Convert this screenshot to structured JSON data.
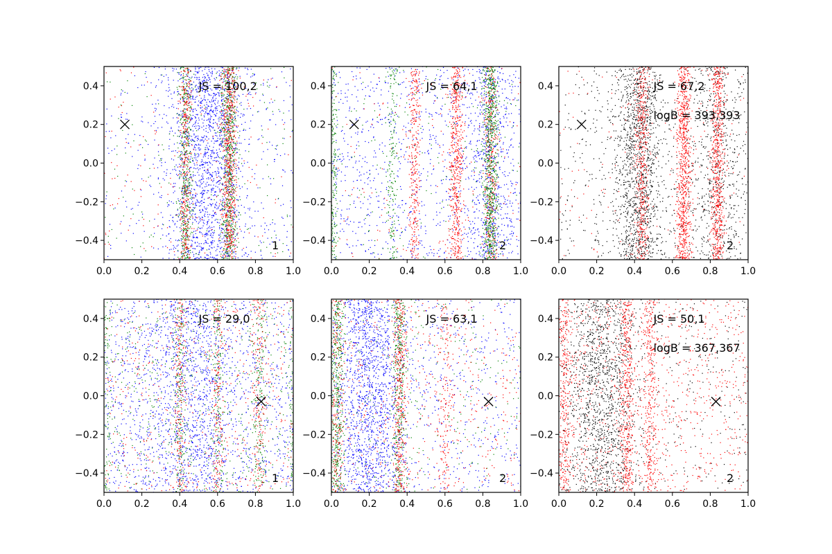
{
  "figure": {
    "layout": "2 rows x 3 columns",
    "background": "#ffffff"
  },
  "colors": {
    "blue": "#0000ff",
    "green": "#008000",
    "red": "#ff0000",
    "black": "#000000"
  },
  "chart_data": [
    {
      "type": "scatter",
      "xlim": [
        0.0,
        1.0
      ],
      "ylim": [
        -0.5,
        0.5
      ],
      "xticks": [
        "0.0",
        "0.2",
        "0.4",
        "0.6",
        "0.8",
        "1.0"
      ],
      "yticks": [
        "-0.4",
        "-0.2",
        "0.0",
        "0.2",
        "0.4"
      ],
      "annotations": [
        "JS = 100,2"
      ],
      "panel_label": "1",
      "marker_x": {
        "x": 0.11,
        "y": 0.2
      },
      "series": [
        {
          "name": "blue",
          "color": "#0000ff",
          "distribution": "mixed uniform/Gaussian bands",
          "uniform_count": 450,
          "bands": [
            {
              "center": 0.55,
              "sigma": 0.1,
              "count": 1500
            }
          ]
        },
        {
          "name": "green",
          "color": "#008000",
          "uniform_count": 180,
          "bands": [
            {
              "center": 0.43,
              "sigma": 0.018,
              "count": 450
            },
            {
              "center": 0.66,
              "sigma": 0.022,
              "count": 650
            }
          ]
        },
        {
          "name": "red",
          "color": "#ff0000",
          "uniform_count": 170,
          "bands": [
            {
              "center": 0.43,
              "sigma": 0.015,
              "count": 320
            },
            {
              "center": 0.66,
              "sigma": 0.02,
              "count": 600
            }
          ]
        }
      ]
    },
    {
      "type": "scatter",
      "xlim": [
        0.0,
        1.0
      ],
      "ylim": [
        -0.5,
        0.5
      ],
      "xticks": [
        "0.0",
        "0.2",
        "0.4",
        "0.6",
        "0.8",
        "1.0"
      ],
      "yticks": [
        "-0.4",
        "-0.2",
        "0.0",
        "0.2",
        "0.4"
      ],
      "annotations": [
        "JS = 64,1"
      ],
      "panel_label": "2",
      "marker_x": {
        "x": 0.12,
        "y": 0.2
      },
      "series": [
        {
          "name": "blue",
          "color": "#0000ff",
          "uniform_count": 1000,
          "bands": [
            {
              "center": 0.84,
              "sigma": 0.06,
              "count": 500
            }
          ]
        },
        {
          "name": "red",
          "color": "#ff0000",
          "uniform_count": 150,
          "bands": [
            {
              "center": 0.44,
              "sigma": 0.015,
              "count": 300
            },
            {
              "center": 0.66,
              "sigma": 0.018,
              "count": 550
            },
            {
              "center": 0.84,
              "sigma": 0.018,
              "count": 350
            }
          ]
        },
        {
          "name": "green",
          "color": "#008000",
          "uniform_count": 150,
          "bands": [
            {
              "center": 0.01,
              "sigma": 0.012,
              "count": 220
            },
            {
              "center": 0.32,
              "sigma": 0.015,
              "count": 180
            },
            {
              "center": 0.84,
              "sigma": 0.02,
              "count": 750
            }
          ]
        }
      ]
    },
    {
      "type": "scatter",
      "xlim": [
        0.0,
        1.0
      ],
      "ylim": [
        -0.5,
        0.5
      ],
      "xticks": [
        "0.0",
        "0.2",
        "0.4",
        "0.6",
        "0.8",
        "1.0"
      ],
      "yticks": [
        "-0.4",
        "-0.2",
        "0.0",
        "0.2",
        "0.4"
      ],
      "annotations": [
        "JS = 67,2",
        "logB = 393,393"
      ],
      "panel_label": "2",
      "marker_x": {
        "x": 0.12,
        "y": 0.2
      },
      "series": [
        {
          "name": "black",
          "color": "#000000",
          "uniform_count": 600,
          "bands": [
            {
              "center": 0.42,
              "sigma": 0.06,
              "count": 1200
            },
            {
              "center": 0.85,
              "sigma": 0.08,
              "count": 500
            }
          ]
        },
        {
          "name": "red",
          "color": "#ff0000",
          "uniform_count": 150,
          "bands": [
            {
              "center": 0.44,
              "sigma": 0.018,
              "count": 450
            },
            {
              "center": 0.66,
              "sigma": 0.02,
              "count": 800
            },
            {
              "center": 0.84,
              "sigma": 0.018,
              "count": 650
            }
          ]
        }
      ]
    },
    {
      "type": "scatter",
      "xlim": [
        0.0,
        1.0
      ],
      "ylim": [
        -0.5,
        0.5
      ],
      "xticks": [
        "0.0",
        "0.2",
        "0.4",
        "0.6",
        "0.8",
        "1.0"
      ],
      "yticks": [
        "-0.4",
        "-0.2",
        "0.0",
        "0.2",
        "0.4"
      ],
      "annotations": [
        "JS = 29,0"
      ],
      "panel_label": "1",
      "marker_x": {
        "x": 0.83,
        "y": -0.03
      },
      "series": [
        {
          "name": "blue",
          "color": "#0000ff",
          "uniform_count": 1200,
          "bands": [
            {
              "center": 0.45,
              "sigma": 0.12,
              "count": 900
            }
          ]
        },
        {
          "name": "green",
          "color": "#008000",
          "uniform_count": 500,
          "bands": [
            {
              "center": 0.0,
              "sigma": 0.015,
              "count": 120
            },
            {
              "center": 0.4,
              "sigma": 0.015,
              "count": 180
            },
            {
              "center": 0.6,
              "sigma": 0.015,
              "count": 150
            },
            {
              "center": 0.82,
              "sigma": 0.02,
              "count": 150
            },
            {
              "center": 1.0,
              "sigma": 0.01,
              "count": 120
            }
          ]
        },
        {
          "name": "red",
          "color": "#ff0000",
          "uniform_count": 450,
          "bands": [
            {
              "center": 0.4,
              "sigma": 0.015,
              "count": 180
            },
            {
              "center": 0.6,
              "sigma": 0.015,
              "count": 160
            },
            {
              "center": 0.82,
              "sigma": 0.02,
              "count": 150
            }
          ]
        }
      ]
    },
    {
      "type": "scatter",
      "xlim": [
        0.0,
        1.0
      ],
      "ylim": [
        -0.5,
        0.5
      ],
      "xticks": [
        "0.0",
        "0.2",
        "0.4",
        "0.6",
        "0.8",
        "1.0"
      ],
      "yticks": [
        "-0.4",
        "-0.2",
        "0.0",
        "0.2",
        "0.4"
      ],
      "annotations": [
        "JS = 63,1"
      ],
      "panel_label": "2",
      "marker_x": {
        "x": 0.83,
        "y": -0.03
      },
      "series": [
        {
          "name": "blue",
          "color": "#0000ff",
          "uniform_count": 700,
          "bands": [
            {
              "center": 0.2,
              "sigma": 0.09,
              "count": 1300
            }
          ]
        },
        {
          "name": "green",
          "color": "#008000",
          "uniform_count": 250,
          "bands": [
            {
              "center": 0.03,
              "sigma": 0.02,
              "count": 450
            },
            {
              "center": 0.36,
              "sigma": 0.018,
              "count": 350
            }
          ]
        },
        {
          "name": "red",
          "color": "#ff0000",
          "uniform_count": 450,
          "bands": [
            {
              "center": 0.03,
              "sigma": 0.02,
              "count": 200
            },
            {
              "center": 0.36,
              "sigma": 0.018,
              "count": 350
            },
            {
              "center": 0.6,
              "sigma": 0.02,
              "count": 150
            }
          ]
        }
      ]
    },
    {
      "type": "scatter",
      "xlim": [
        0.0,
        1.0
      ],
      "ylim": [
        -0.5,
        0.5
      ],
      "xticks": [
        "0.0",
        "0.2",
        "0.4",
        "0.6",
        "0.8",
        "1.0"
      ],
      "yticks": [
        "-0.4",
        "-0.2",
        "0.0",
        "0.2",
        "0.4"
      ],
      "annotations": [
        "JS = 50,1",
        "logB = 367,367"
      ],
      "panel_label": "2",
      "marker_x": {
        "x": 0.83,
        "y": -0.03
      },
      "series": [
        {
          "name": "black",
          "color": "#000000",
          "uniform_count": 400,
          "bands": [
            {
              "center": 0.22,
              "sigma": 0.1,
              "count": 1300
            }
          ]
        },
        {
          "name": "red",
          "color": "#ff0000",
          "uniform_count": 900,
          "bands": [
            {
              "center": 0.03,
              "sigma": 0.02,
              "count": 300
            },
            {
              "center": 0.36,
              "sigma": 0.018,
              "count": 400
            },
            {
              "center": 0.48,
              "sigma": 0.018,
              "count": 300
            }
          ]
        }
      ]
    }
  ]
}
